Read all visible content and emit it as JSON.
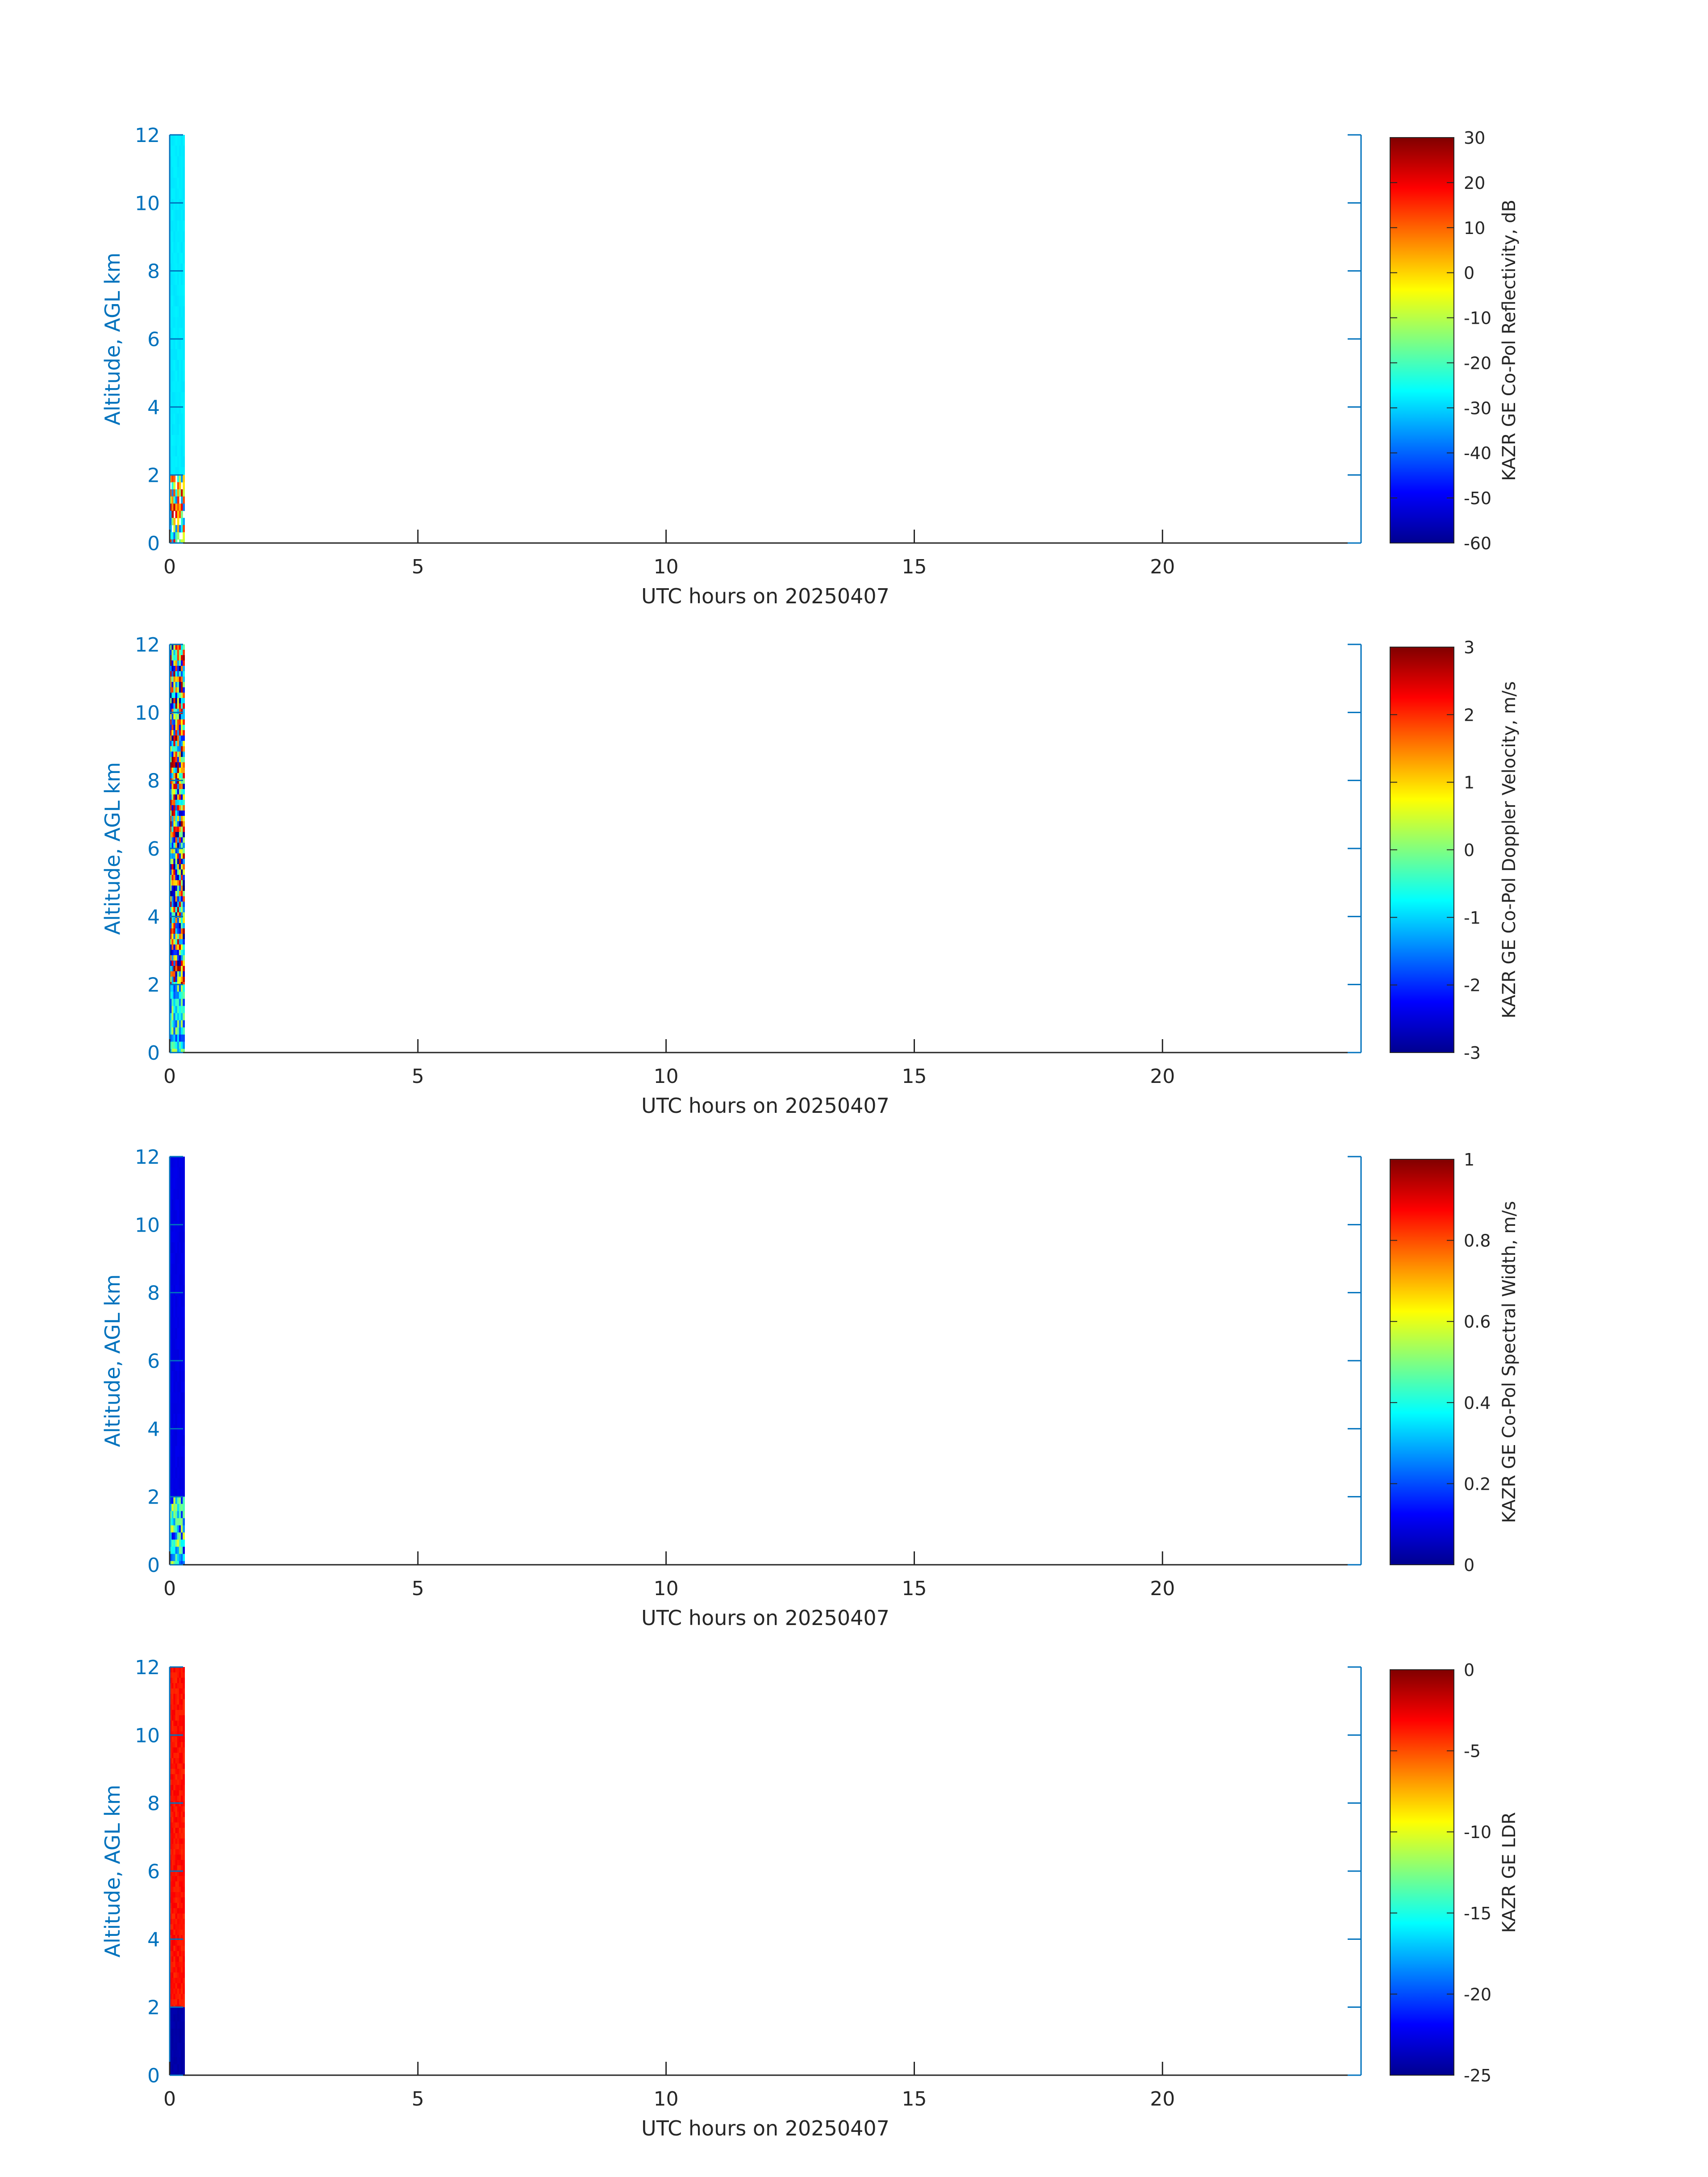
{
  "figure": {
    "panels": [
      {
        "ylabel": "Altitude, AGL km",
        "xlabel": "UTC hours on 20250407",
        "cb_label": "KAZR GE Co-Pol Reflectivity, dB"
      },
      {
        "ylabel": "Altitude, AGL km",
        "xlabel": "UTC hours on 20250407",
        "cb_label": "KAZR GE Co-Pol Doppler Velocity, m/s"
      },
      {
        "ylabel": "Altitude, AGL km",
        "xlabel": "UTC hours on 20250407",
        "cb_label": "KAZR GE Co-Pol Spectral Width, m/s"
      },
      {
        "ylabel": "Altitude, AGL km",
        "xlabel": "UTC hours on 20250407",
        "cb_label": "KAZR GE LDR"
      }
    ]
  },
  "colors": {
    "axis_label": "#0072BD",
    "text": "#262626",
    "colormap": "jet"
  },
  "chart_data": [
    {
      "type": "heatmap",
      "title": "",
      "xlabel": "UTC hours on 20250407",
      "ylabel": "Altitude, AGL km",
      "xlim": [
        0,
        24
      ],
      "ylim": [
        0,
        12
      ],
      "xticks": [
        0,
        5,
        10,
        15,
        20
      ],
      "yticks": [
        0,
        2,
        4,
        6,
        8,
        10,
        12
      ],
      "colorbar": {
        "label": "KAZR GE Co-Pol Reflectivity, dB",
        "range": [
          -60,
          30
        ],
        "ticks": [
          -60,
          -50,
          -40,
          -30,
          -20,
          -10,
          0,
          10,
          20,
          30
        ]
      },
      "data_extent_hours": [
        0,
        0.3
      ],
      "regions": [
        {
          "name": "upper-column",
          "alt": [
            2,
            12
          ],
          "value_approx": -28
        },
        {
          "name": "low-level-echo",
          "alt": [
            0,
            2
          ],
          "value_range": [
            -40,
            25
          ]
        }
      ]
    },
    {
      "type": "heatmap",
      "title": "",
      "xlabel": "UTC hours on 20250407",
      "ylabel": "Altitude, AGL km",
      "xlim": [
        0,
        24
      ],
      "ylim": [
        0,
        12
      ],
      "xticks": [
        0,
        5,
        10,
        15,
        20
      ],
      "yticks": [
        0,
        2,
        4,
        6,
        8,
        10,
        12
      ],
      "colorbar": {
        "label": "KAZR GE Co-Pol Doppler Velocity, m/s",
        "range": [
          -3,
          3
        ],
        "ticks": [
          -3,
          -2,
          -1,
          0,
          1,
          2,
          3
        ]
      },
      "data_extent_hours": [
        0,
        0.3
      ],
      "regions": [
        {
          "name": "upper-column-noise",
          "alt": [
            2,
            12
          ],
          "value_range": [
            -3,
            3
          ]
        },
        {
          "name": "low-level-echo",
          "alt": [
            0,
            2
          ],
          "value_range": [
            -2,
            0.5
          ]
        }
      ]
    },
    {
      "type": "heatmap",
      "title": "",
      "xlabel": "UTC hours on 20250407",
      "ylabel": "Altitude, AGL km",
      "xlim": [
        0,
        24
      ],
      "ylim": [
        0,
        12
      ],
      "xticks": [
        0,
        5,
        10,
        15,
        20
      ],
      "yticks": [
        0,
        2,
        4,
        6,
        8,
        10,
        12
      ],
      "colorbar": {
        "label": "KAZR GE Co-Pol Spectral Width, m/s",
        "range": [
          0,
          1
        ],
        "ticks": [
          0,
          0.2,
          0.4,
          0.6,
          0.8,
          1
        ]
      },
      "data_extent_hours": [
        0,
        0.3
      ],
      "regions": [
        {
          "name": "upper-column",
          "alt": [
            2,
            12
          ],
          "value_approx": 0.1
        },
        {
          "name": "low-level-echo",
          "alt": [
            0,
            2
          ],
          "value_range": [
            0.1,
            0.6
          ]
        }
      ]
    },
    {
      "type": "heatmap",
      "title": "",
      "xlabel": "UTC hours on 20250407",
      "ylabel": "Altitude, AGL km",
      "xlim": [
        0,
        24
      ],
      "ylim": [
        0,
        12
      ],
      "xticks": [
        0,
        5,
        10,
        15,
        20
      ],
      "yticks": [
        0,
        2,
        4,
        6,
        8,
        10,
        12
      ],
      "colorbar": {
        "label": "KAZR GE LDR",
        "range": [
          -25,
          0
        ],
        "ticks": [
          -25,
          -20,
          -15,
          -10,
          -5,
          0
        ]
      },
      "data_extent_hours": [
        0,
        0.3
      ],
      "regions": [
        {
          "name": "upper-column-noise",
          "alt": [
            2,
            12
          ],
          "value_approx": -3.5
        },
        {
          "name": "low-level-echo",
          "alt": [
            0,
            2
          ],
          "value_approx": -24
        }
      ]
    }
  ]
}
